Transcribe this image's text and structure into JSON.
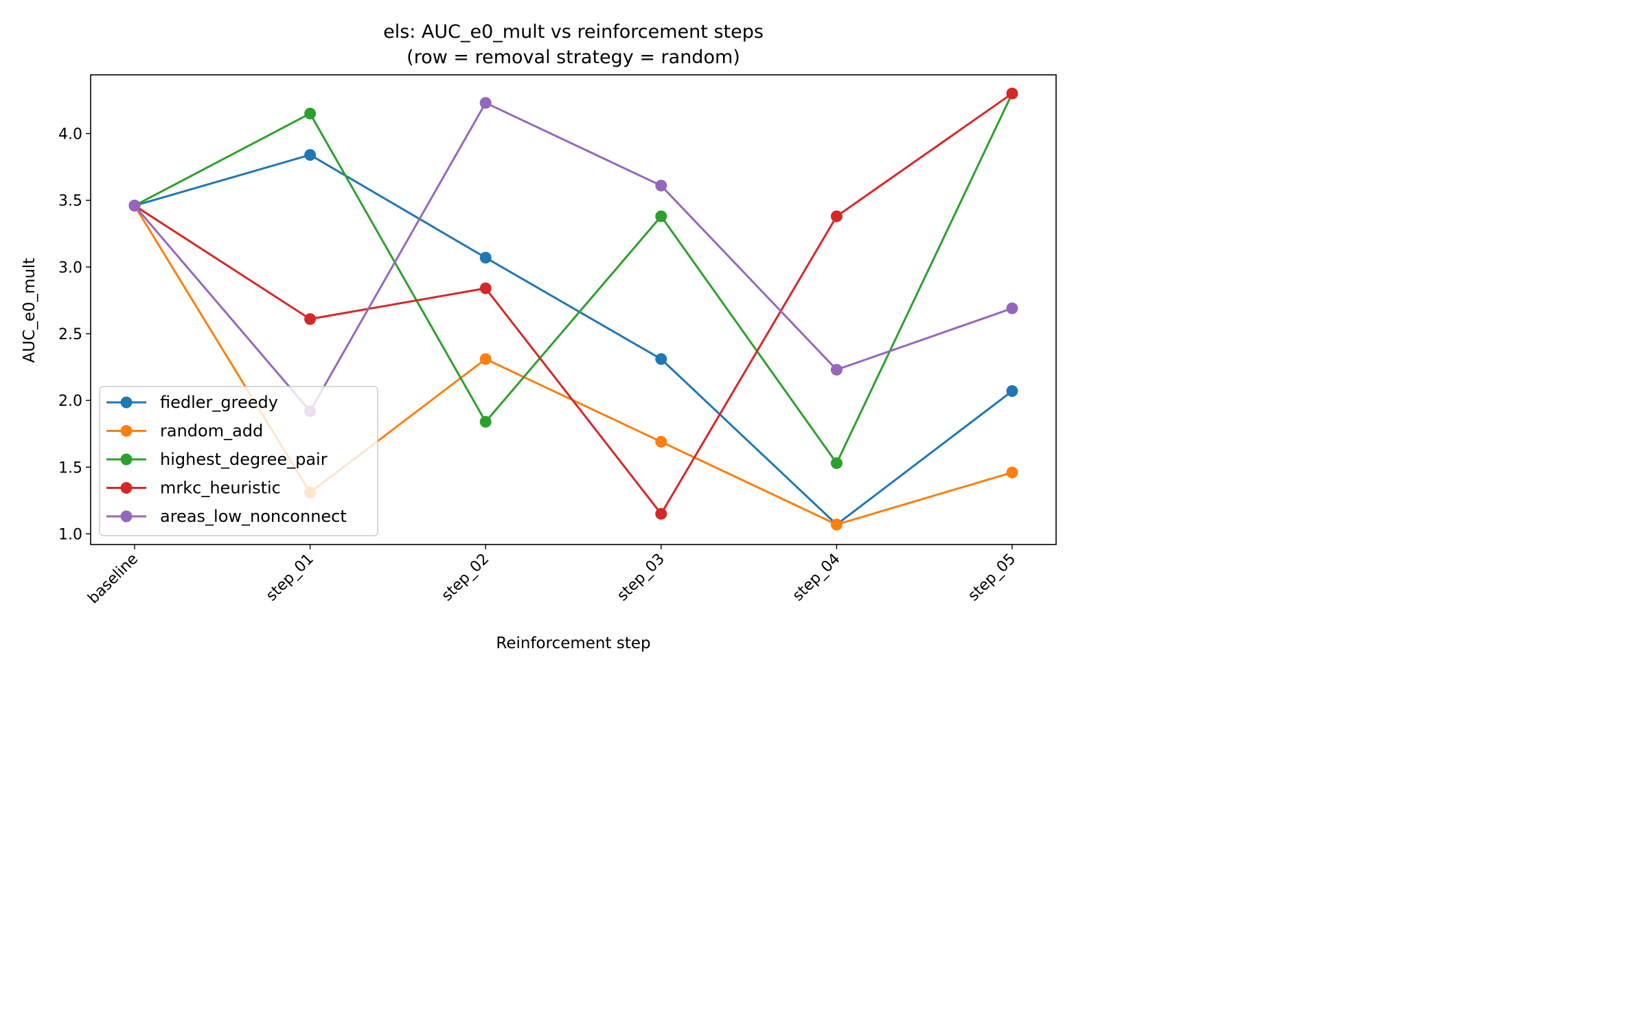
{
  "chart_data": {
    "type": "line",
    "title_line1": "els: AUC_e0_mult vs reinforcement steps",
    "title_line2": "(row = removal strategy = random)",
    "xlabel": "Reinforcement step",
    "ylabel": "AUC_e0_mult",
    "categories": [
      "baseline",
      "step_01",
      "step_02",
      "step_03",
      "step_04",
      "step_05"
    ],
    "ylim": [
      0.92,
      4.44
    ],
    "yticks": [
      1.0,
      1.5,
      2.0,
      2.5,
      3.0,
      3.5,
      4.0
    ],
    "ytick_labels": [
      "1.0",
      "1.5",
      "2.0",
      "2.5",
      "3.0",
      "3.5",
      "4.0"
    ],
    "grid": false,
    "legend_position": "lower-left",
    "series": [
      {
        "name": "fiedler_greedy",
        "color": "#1f77b4",
        "values": [
          3.46,
          3.84,
          3.07,
          2.31,
          1.07,
          2.07
        ]
      },
      {
        "name": "random_add",
        "color": "#ff7f0e",
        "values": [
          3.46,
          1.31,
          2.31,
          1.69,
          1.07,
          1.46
        ]
      },
      {
        "name": "highest_degree_pair",
        "color": "#2ca02c",
        "values": [
          3.46,
          4.15,
          1.84,
          3.38,
          1.53,
          4.3
        ]
      },
      {
        "name": "mrkc_heuristic",
        "color": "#d62728",
        "values": [
          3.46,
          2.61,
          2.84,
          1.15,
          3.38,
          4.3
        ]
      },
      {
        "name": "areas_low_nonconnect",
        "color": "#9467bd",
        "values": [
          3.46,
          1.92,
          4.23,
          3.61,
          2.23,
          2.69
        ]
      }
    ]
  }
}
